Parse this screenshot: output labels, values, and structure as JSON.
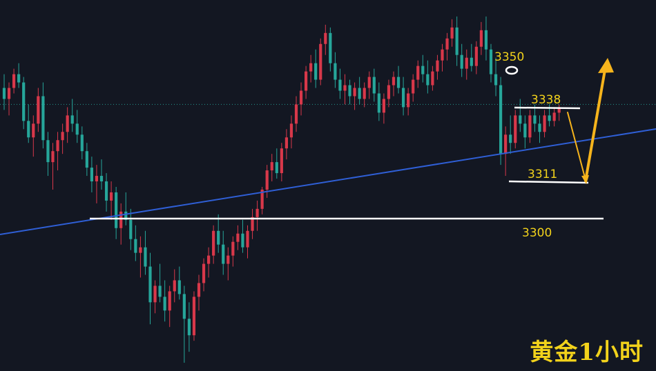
{
  "caption": "黄金1小时",
  "chart_data": {
    "type": "candlestick",
    "instrument": "黄金",
    "timeframe": "1小时",
    "ylim": [
      3237,
      3372
    ],
    "colors": {
      "up": "#d8384a",
      "down": "#26a69a",
      "trendline": "#2f5fd6",
      "level": "#ffffff",
      "arrow": "#f6b41c",
      "label": "#f2d21b",
      "current_price_line": "#26a69a"
    },
    "current_price": 3334,
    "levels": [
      {
        "price": 3350,
        "label": "3350",
        "style": "circle-marker"
      },
      {
        "price": 3338,
        "label": "3338",
        "style": "horizontal-line"
      },
      {
        "price": 3311,
        "label": "3311",
        "style": "horizontal-line"
      },
      {
        "price": 3300,
        "label": "3300",
        "style": "horizontal-line"
      }
    ],
    "trendline": {
      "style": "ascending-support",
      "from_price": 3301,
      "to_price": 3333
    },
    "projection": [
      {
        "step": "down",
        "from_price": 3338,
        "to_price": 3311
      },
      {
        "step": "up",
        "from_price": 3311,
        "to_price": 3361
      }
    ],
    "candles": [
      [
        3340,
        3345,
        3332,
        3336
      ],
      [
        3336,
        3342,
        3330,
        3340
      ],
      [
        3340,
        3347,
        3338,
        3345
      ],
      [
        3345,
        3349,
        3340,
        3342
      ],
      [
        3342,
        3344,
        3325,
        3328
      ],
      [
        3328,
        3334,
        3320,
        3322
      ],
      [
        3322,
        3330,
        3315,
        3327
      ],
      [
        3327,
        3340,
        3324,
        3337
      ],
      [
        3337,
        3342,
        3318,
        3321
      ],
      [
        3321,
        3324,
        3308,
        3313
      ],
      [
        3313,
        3320,
        3303,
        3317
      ],
      [
        3317,
        3324,
        3310,
        3321
      ],
      [
        3321,
        3327,
        3316,
        3324
      ],
      [
        3324,
        3333,
        3320,
        3330
      ],
      [
        3330,
        3336,
        3324,
        3327
      ],
      [
        3327,
        3332,
        3320,
        3323
      ],
      [
        3323,
        3326,
        3314,
        3317
      ],
      [
        3317,
        3320,
        3308,
        3311
      ],
      [
        3311,
        3315,
        3302,
        3306
      ],
      [
        3306,
        3312,
        3298,
        3308
      ],
      [
        3308,
        3314,
        3303,
        3306
      ],
      [
        3306,
        3309,
        3295,
        3299
      ],
      [
        3299,
        3306,
        3292,
        3302
      ],
      [
        3302,
        3304,
        3285,
        3289
      ],
      [
        3289,
        3298,
        3283,
        3295
      ],
      [
        3295,
        3302,
        3290,
        3292
      ],
      [
        3292,
        3296,
        3281,
        3285
      ],
      [
        3285,
        3290,
        3277,
        3280
      ],
      [
        3280,
        3286,
        3271,
        3282
      ],
      [
        3282,
        3288,
        3272,
        3275
      ],
      [
        3275,
        3280,
        3254,
        3262
      ],
      [
        3262,
        3270,
        3258,
        3268
      ],
      [
        3268,
        3276,
        3262,
        3264
      ],
      [
        3264,
        3270,
        3255,
        3259
      ],
      [
        3259,
        3268,
        3253,
        3266
      ],
      [
        3266,
        3274,
        3262,
        3270
      ],
      [
        3270,
        3275,
        3263,
        3265
      ],
      [
        3265,
        3268,
        3240,
        3256
      ],
      [
        3256,
        3262,
        3244,
        3250
      ],
      [
        3250,
        3266,
        3248,
        3264
      ],
      [
        3264,
        3272,
        3259,
        3269
      ],
      [
        3269,
        3278,
        3266,
        3276
      ],
      [
        3276,
        3282,
        3271,
        3279
      ],
      [
        3279,
        3290,
        3276,
        3288
      ],
      [
        3288,
        3294,
        3280,
        3283
      ],
      [
        3283,
        3288,
        3272,
        3276
      ],
      [
        3276,
        3282,
        3270,
        3279
      ],
      [
        3279,
        3286,
        3275,
        3284
      ],
      [
        3284,
        3290,
        3281,
        3287
      ],
      [
        3287,
        3292,
        3280,
        3282
      ],
      [
        3282,
        3290,
        3278,
        3288
      ],
      [
        3288,
        3296,
        3285,
        3293
      ],
      [
        3293,
        3299,
        3288,
        3296
      ],
      [
        3296,
        3304,
        3294,
        3303
      ],
      [
        3303,
        3312,
        3300,
        3310
      ],
      [
        3310,
        3316,
        3306,
        3313
      ],
      [
        3313,
        3318,
        3307,
        3309
      ],
      [
        3309,
        3320,
        3306,
        3318
      ],
      [
        3318,
        3325,
        3314,
        3322
      ],
      [
        3322,
        3330,
        3318,
        3327
      ],
      [
        3327,
        3337,
        3324,
        3334
      ],
      [
        3334,
        3342,
        3330,
        3339
      ],
      [
        3339,
        3348,
        3336,
        3346
      ],
      [
        3346,
        3352,
        3342,
        3349
      ],
      [
        3349,
        3354,
        3340,
        3343
      ],
      [
        3343,
        3358,
        3341,
        3356
      ],
      [
        3356,
        3363,
        3352,
        3360
      ],
      [
        3360,
        3362,
        3346,
        3349
      ],
      [
        3349,
        3353,
        3340,
        3343
      ],
      [
        3343,
        3347,
        3336,
        3339
      ],
      [
        3339,
        3345,
        3334,
        3341
      ],
      [
        3341,
        3343,
        3334,
        3337
      ],
      [
        3337,
        3342,
        3332,
        3340
      ],
      [
        3340,
        3344,
        3334,
        3336
      ],
      [
        3336,
        3342,
        3333,
        3340
      ],
      [
        3340,
        3346,
        3336,
        3344
      ],
      [
        3344,
        3347,
        3335,
        3338
      ],
      [
        3338,
        3342,
        3328,
        3331
      ],
      [
        3331,
        3338,
        3327,
        3336
      ],
      [
        3336,
        3343,
        3333,
        3341
      ],
      [
        3341,
        3346,
        3337,
        3344
      ],
      [
        3344,
        3348,
        3338,
        3340
      ],
      [
        3340,
        3344,
        3330,
        3333
      ],
      [
        3333,
        3340,
        3330,
        3338
      ],
      [
        3338,
        3345,
        3335,
        3343
      ],
      [
        3343,
        3350,
        3340,
        3348
      ],
      [
        3348,
        3352,
        3342,
        3345
      ],
      [
        3345,
        3350,
        3338,
        3341
      ],
      [
        3341,
        3348,
        3339,
        3346
      ],
      [
        3346,
        3352,
        3343,
        3350
      ],
      [
        3350,
        3356,
        3346,
        3354
      ],
      [
        3354,
        3360,
        3350,
        3358
      ],
      [
        3358,
        3365,
        3355,
        3362
      ],
      [
        3362,
        3366,
        3348,
        3352
      ],
      [
        3352,
        3356,
        3344,
        3347
      ],
      [
        3347,
        3354,
        3343,
        3351
      ],
      [
        3351,
        3356,
        3346,
        3348
      ],
      [
        3348,
        3357,
        3345,
        3355
      ],
      [
        3355,
        3364,
        3352,
        3361
      ],
      [
        3361,
        3366,
        3350,
        3354
      ],
      [
        3354,
        3356,
        3342,
        3345
      ],
      [
        3345,
        3351,
        3337,
        3341
      ],
      [
        3341,
        3344,
        3312,
        3316
      ],
      [
        3316,
        3326,
        3308,
        3323
      ],
      [
        3323,
        3330,
        3316,
        3320
      ],
      [
        3320,
        3332,
        3318,
        3330
      ],
      [
        3330,
        3336,
        3324,
        3327
      ],
      [
        3327,
        3330,
        3318,
        3322
      ],
      [
        3322,
        3332,
        3320,
        3330
      ],
      [
        3330,
        3334,
        3324,
        3327
      ],
      [
        3327,
        3330,
        3320,
        3324
      ],
      [
        3324,
        3332,
        3322,
        3330
      ],
      [
        3330,
        3334,
        3326,
        3328
      ],
      [
        3328,
        3333,
        3326,
        3331
      ],
      [
        3331,
        3334,
        3328,
        3333
      ]
    ]
  }
}
